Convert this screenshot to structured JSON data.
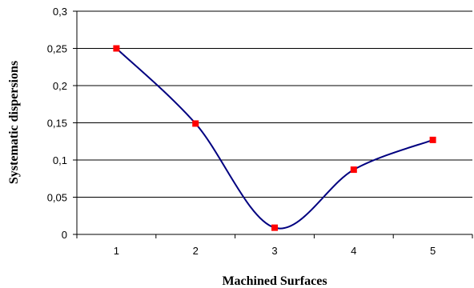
{
  "chart_data": {
    "type": "line",
    "title": "",
    "xlabel": "Machined Surfaces",
    "ylabel": "Systematic dispersions",
    "categories": [
      "1",
      "2",
      "3",
      "4",
      "5"
    ],
    "series": [
      {
        "values": [
          0.25,
          0.149,
          0.009,
          0.087,
          0.127
        ]
      }
    ],
    "ylim": [
      0,
      0.3
    ],
    "yticks": [
      0,
      0.05,
      0.1,
      0.15,
      0.2,
      0.25,
      0.3
    ],
    "ytick_labels": [
      "0",
      "0,05",
      "0,1",
      "0,15",
      "0,2",
      "0,25",
      "0,3"
    ],
    "grid": "horizontal",
    "smooth": true,
    "line_color": "#000080",
    "marker_color": "#ff0000",
    "marker": "square"
  }
}
